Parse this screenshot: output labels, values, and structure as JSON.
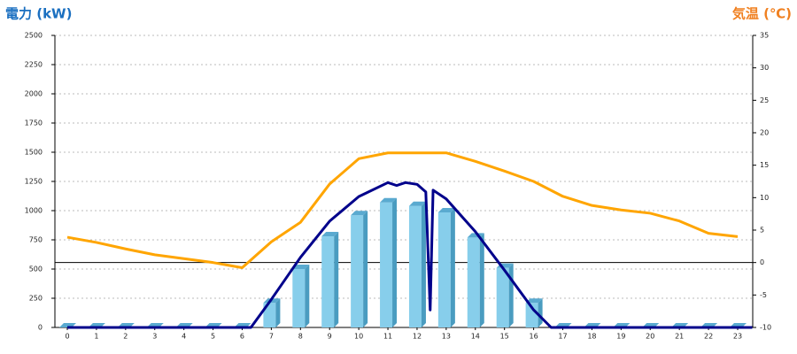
{
  "chart_data": {
    "type": "bar",
    "title_left": "電力 (kW)",
    "title_right": "気温 (℃)",
    "categories": [
      "0",
      "1",
      "2",
      "3",
      "4",
      "5",
      "6",
      "7",
      "8",
      "9",
      "10",
      "11",
      "12",
      "13",
      "14",
      "15",
      "16",
      "17",
      "18",
      "19",
      "20",
      "21",
      "22",
      "23"
    ],
    "ylim": [
      0,
      2500
    ],
    "yticks": [
      0,
      250,
      500,
      750,
      1000,
      1250,
      1500,
      1750,
      2000,
      2250,
      2500
    ],
    "y2lim": [
      -10,
      35
    ],
    "y2ticks": [
      -10,
      -5,
      0,
      5,
      10,
      15,
      20,
      25,
      30,
      35
    ],
    "grid": true,
    "series": [
      {
        "type": "bar",
        "color": "#87ceeb",
        "values": [
          0,
          0,
          0,
          0,
          0,
          0,
          0,
          210,
          500,
          780,
          960,
          1070,
          1040,
          985,
          770,
          510,
          210,
          0,
          0,
          0,
          0,
          0,
          0,
          0
        ]
      },
      {
        "type": "line",
        "color": "#00008b",
        "x": [
          0,
          6.3,
          7,
          8,
          9,
          10,
          11,
          11.3,
          11.6,
          12,
          12.3,
          12.45,
          12.55,
          13,
          14,
          15,
          16,
          16.6,
          23.5
        ],
        "values": [
          0,
          0,
          240,
          600,
          910,
          1120,
          1240,
          1215,
          1240,
          1225,
          1160,
          150,
          1175,
          1100,
          820,
          490,
          150,
          0,
          0
        ]
      },
      {
        "type": "line",
        "axis": "y2",
        "color": "#ffa500",
        "values": [
          3.9,
          3.1,
          2.1,
          1.2,
          0.6,
          0,
          -0.8,
          3.2,
          6.2,
          12.1,
          16,
          16.9,
          16.9,
          16.9,
          15.6,
          14.1,
          12.5,
          10.2,
          8.8,
          8.1,
          7.6,
          6.4,
          4.5,
          4
        ]
      }
    ]
  }
}
